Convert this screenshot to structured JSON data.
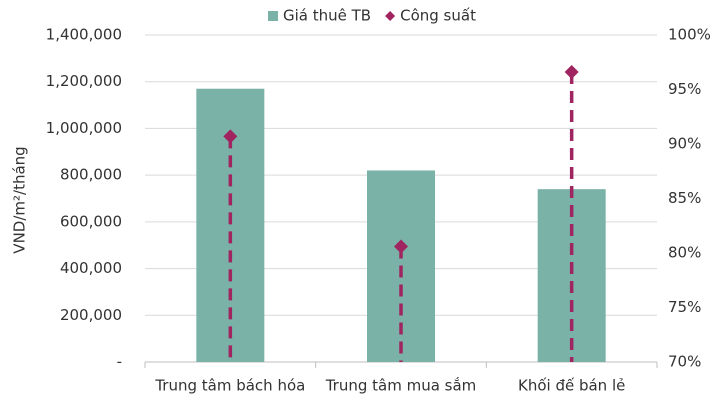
{
  "chart_data": {
    "type": "bar",
    "categories": [
      "Trung tâm bách hóa",
      "Trung tâm mua sắm",
      "Khối đế bán lẻ"
    ],
    "series": [
      {
        "name": "Giá thuê TB",
        "type": "bar",
        "color": "#7ab2a8",
        "values": [
          1170000,
          820000,
          740000
        ]
      },
      {
        "name": "Công suất",
        "type": "scatter",
        "axis": "y2",
        "color": "#a0245f",
        "values": [
          90.7,
          80.6,
          96.6
        ]
      }
    ],
    "ylabel": "VND/m²/tháng",
    "ylim": [
      0,
      1400000
    ],
    "yticks": [
      {
        "value": 0,
        "label": "-"
      },
      {
        "value": 200000,
        "label": "200,000"
      },
      {
        "value": 400000,
        "label": "400,000"
      },
      {
        "value": 600000,
        "label": "600,000"
      },
      {
        "value": 800000,
        "label": "800,000"
      },
      {
        "value": 1000000,
        "label": "1,000,000"
      },
      {
        "value": 1200000,
        "label": "1,200,000"
      },
      {
        "value": 1400000,
        "label": "1,400,000"
      }
    ],
    "y2lim": [
      70,
      100
    ],
    "y2ticks": [
      {
        "value": 70,
        "label": "70%"
      },
      {
        "value": 75,
        "label": "75%"
      },
      {
        "value": 80,
        "label": "80%"
      },
      {
        "value": 85,
        "label": "85%"
      },
      {
        "value": 90,
        "label": "90%"
      },
      {
        "value": 95,
        "label": "95%"
      },
      {
        "value": 100,
        "label": "100%"
      }
    ],
    "grid": true,
    "legend": "top"
  }
}
